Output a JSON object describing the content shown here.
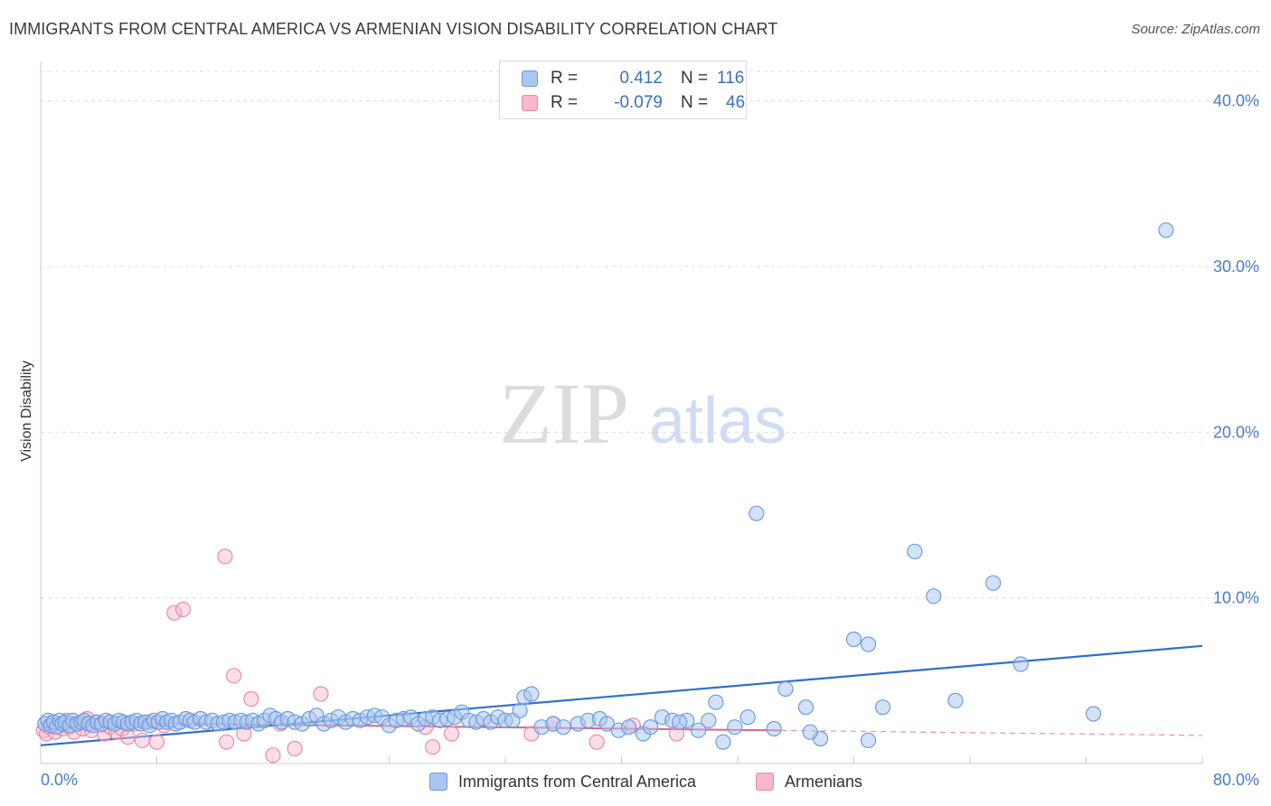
{
  "header": {
    "title": "IMMIGRANTS FROM CENTRAL AMERICA VS ARMENIAN VISION DISABILITY CORRELATION CHART",
    "source": "Source: ZipAtlas.com"
  },
  "watermark": {
    "zip": "ZIP",
    "atlas": "atlas"
  },
  "legend": {
    "series1": {
      "r_label": "R =",
      "r_value": "0.412",
      "n_label": "N =",
      "n_value": "116"
    },
    "series2": {
      "r_label": "R =",
      "r_value": "-0.079",
      "n_label": "N =",
      "n_value": "46"
    }
  },
  "colors": {
    "blue_fill": "#a9c6f0",
    "blue_stroke": "#6b9be0",
    "blue_line": "#2f6fd0",
    "pink_fill": "#f7b8cb",
    "pink_stroke": "#e88aa8",
    "pink_line": "#e0608a",
    "grid": "#dddddd",
    "tick_text": "#4a7cc8"
  },
  "chart_data": {
    "type": "scatter",
    "title": "IMMIGRANTS FROM CENTRAL AMERICA VS ARMENIAN VISION DISABILITY CORRELATION CHART",
    "xlabel": "",
    "ylabel": "Vision Disability",
    "xlim": [
      0,
      80
    ],
    "ylim": [
      0,
      42
    ],
    "x_tick_labels": [
      "0.0%",
      "80.0%"
    ],
    "y_ticks": [
      10,
      20,
      30,
      40
    ],
    "y_tick_labels": [
      "10.0%",
      "20.0%",
      "30.0%",
      "40.0%"
    ],
    "grid": true,
    "series": [
      {
        "name": "Immigrants from Central America",
        "color": "#a9c6f0",
        "r": 0.412,
        "n": 116,
        "trend": {
          "x": [
            0,
            80
          ],
          "y": [
            1.1,
            7.1
          ]
        },
        "points": [
          [
            0.3,
            2.4
          ],
          [
            0.5,
            2.6
          ],
          [
            0.7,
            2.3
          ],
          [
            0.9,
            2.5
          ],
          [
            1.1,
            2.2
          ],
          [
            1.3,
            2.6
          ],
          [
            1.5,
            2.4
          ],
          [
            1.7,
            2.5
          ],
          [
            2.0,
            2.3
          ],
          [
            2.2,
            2.6
          ],
          [
            2.5,
            2.4
          ],
          [
            2.8,
            2.5
          ],
          [
            3.0,
            2.6
          ],
          [
            3.3,
            2.4
          ],
          [
            3.6,
            2.3
          ],
          [
            3.9,
            2.5
          ],
          [
            4.2,
            2.4
          ],
          [
            4.5,
            2.6
          ],
          [
            4.8,
            2.5
          ],
          [
            5.1,
            2.4
          ],
          [
            5.4,
            2.6
          ],
          [
            5.7,
            2.5
          ],
          [
            6.0,
            2.4
          ],
          [
            6.3,
            2.5
          ],
          [
            6.6,
            2.6
          ],
          [
            6.9,
            2.4
          ],
          [
            7.2,
            2.5
          ],
          [
            7.5,
            2.3
          ],
          [
            7.8,
            2.6
          ],
          [
            8.1,
            2.5
          ],
          [
            8.4,
            2.7
          ],
          [
            8.7,
            2.5
          ],
          [
            9.0,
            2.6
          ],
          [
            9.3,
            2.4
          ],
          [
            9.6,
            2.5
          ],
          [
            10.0,
            2.7
          ],
          [
            10.3,
            2.6
          ],
          [
            10.6,
            2.5
          ],
          [
            11.0,
            2.7
          ],
          [
            11.4,
            2.5
          ],
          [
            11.8,
            2.6
          ],
          [
            12.2,
            2.4
          ],
          [
            12.6,
            2.5
          ],
          [
            13.0,
            2.6
          ],
          [
            13.4,
            2.5
          ],
          [
            13.8,
            2.6
          ],
          [
            14.2,
            2.5
          ],
          [
            14.6,
            2.6
          ],
          [
            15.0,
            2.4
          ],
          [
            15.4,
            2.6
          ],
          [
            15.8,
            2.9
          ],
          [
            16.2,
            2.7
          ],
          [
            16.6,
            2.5
          ],
          [
            17.0,
            2.7
          ],
          [
            17.5,
            2.5
          ],
          [
            18.0,
            2.4
          ],
          [
            18.5,
            2.7
          ],
          [
            19.0,
            2.9
          ],
          [
            19.5,
            2.4
          ],
          [
            20.0,
            2.6
          ],
          [
            20.5,
            2.8
          ],
          [
            21.0,
            2.5
          ],
          [
            21.5,
            2.7
          ],
          [
            22.0,
            2.6
          ],
          [
            22.5,
            2.8
          ],
          [
            23.0,
            2.9
          ],
          [
            23.5,
            2.8
          ],
          [
            24.0,
            2.3
          ],
          [
            24.5,
            2.6
          ],
          [
            25.0,
            2.7
          ],
          [
            25.5,
            2.8
          ],
          [
            26.0,
            2.4
          ],
          [
            26.5,
            2.7
          ],
          [
            27.0,
            2.8
          ],
          [
            27.5,
            2.6
          ],
          [
            28.0,
            2.7
          ],
          [
            28.5,
            2.8
          ],
          [
            29.0,
            3.1
          ],
          [
            29.5,
            2.6
          ],
          [
            30.0,
            2.5
          ],
          [
            30.5,
            2.7
          ],
          [
            31.0,
            2.5
          ],
          [
            31.5,
            2.8
          ],
          [
            32.0,
            2.6
          ],
          [
            32.5,
            2.6
          ],
          [
            33.0,
            3.2
          ],
          [
            33.3,
            4.0
          ],
          [
            33.8,
            4.2
          ],
          [
            34.5,
            2.2
          ],
          [
            35.3,
            2.4
          ],
          [
            36.0,
            2.2
          ],
          [
            37.0,
            2.4
          ],
          [
            37.7,
            2.6
          ],
          [
            38.5,
            2.7
          ],
          [
            39.0,
            2.4
          ],
          [
            39.8,
            2.0
          ],
          [
            40.5,
            2.2
          ],
          [
            41.5,
            1.8
          ],
          [
            42.0,
            2.2
          ],
          [
            42.8,
            2.8
          ],
          [
            43.5,
            2.6
          ],
          [
            44.5,
            2.6
          ],
          [
            45.3,
            2.0
          ],
          [
            46.0,
            2.6
          ],
          [
            46.5,
            3.7
          ],
          [
            47.8,
            2.2
          ],
          [
            48.7,
            2.8
          ],
          [
            50.5,
            2.1
          ],
          [
            51.3,
            4.5
          ],
          [
            52.7,
            3.4
          ],
          [
            53.7,
            1.5
          ],
          [
            57.0,
            1.4
          ],
          [
            56.0,
            7.5
          ],
          [
            58.0,
            3.4
          ],
          [
            60.2,
            12.8
          ],
          [
            61.5,
            10.1
          ],
          [
            63.0,
            3.8
          ],
          [
            65.6,
            10.9
          ],
          [
            67.5,
            6.0
          ],
          [
            72.5,
            3.0
          ],
          [
            77.5,
            32.2
          ],
          [
            49.3,
            15.1
          ],
          [
            57.0,
            7.2
          ],
          [
            53.0,
            1.9
          ],
          [
            47.0,
            1.3
          ],
          [
            44.0,
            2.5
          ]
        ]
      },
      {
        "name": "Armenians",
        "color": "#f7b8cb",
        "r": -0.079,
        "n": 46,
        "trend": {
          "x": [
            0,
            51
          ],
          "y": [
            2.5,
            2.0
          ]
        },
        "trend_extension": {
          "x": [
            51,
            80
          ],
          "y": [
            2.0,
            1.7
          ]
        },
        "points": [
          [
            0.2,
            2.0
          ],
          [
            0.4,
            1.8
          ],
          [
            0.6,
            2.2
          ],
          [
            0.8,
            2.5
          ],
          [
            1.0,
            1.9
          ],
          [
            1.2,
            2.3
          ],
          [
            1.5,
            2.1
          ],
          [
            1.8,
            2.6
          ],
          [
            2.0,
            2.2
          ],
          [
            2.3,
            1.9
          ],
          [
            2.6,
            2.4
          ],
          [
            2.9,
            2.1
          ],
          [
            3.2,
            2.7
          ],
          [
            3.5,
            2.0
          ],
          [
            3.8,
            2.5
          ],
          [
            4.1,
            2.3
          ],
          [
            4.4,
            1.8
          ],
          [
            4.8,
            2.2
          ],
          [
            5.2,
            1.9
          ],
          [
            5.6,
            2.1
          ],
          [
            6.0,
            1.6
          ],
          [
            6.5,
            2.4
          ],
          [
            7.0,
            1.4
          ],
          [
            7.5,
            2.5
          ],
          [
            8.0,
            1.3
          ],
          [
            8.5,
            2.3
          ],
          [
            9.2,
            9.1
          ],
          [
            9.8,
            9.3
          ],
          [
            10.3,
            2.6
          ],
          [
            12.7,
            12.5
          ],
          [
            12.8,
            1.3
          ],
          [
            13.3,
            5.3
          ],
          [
            14.0,
            1.8
          ],
          [
            14.5,
            3.9
          ],
          [
            16.0,
            0.5
          ],
          [
            16.5,
            2.4
          ],
          [
            17.5,
            0.9
          ],
          [
            19.3,
            4.2
          ],
          [
            26.5,
            2.2
          ],
          [
            27.0,
            1.0
          ],
          [
            28.3,
            1.8
          ],
          [
            33.8,
            1.8
          ],
          [
            35.3,
            2.4
          ],
          [
            38.3,
            1.3
          ],
          [
            40.8,
            2.3
          ],
          [
            43.8,
            1.8
          ]
        ]
      }
    ]
  },
  "bottom_legend": {
    "item1": "Immigrants from Central America",
    "item2": "Armenians"
  }
}
